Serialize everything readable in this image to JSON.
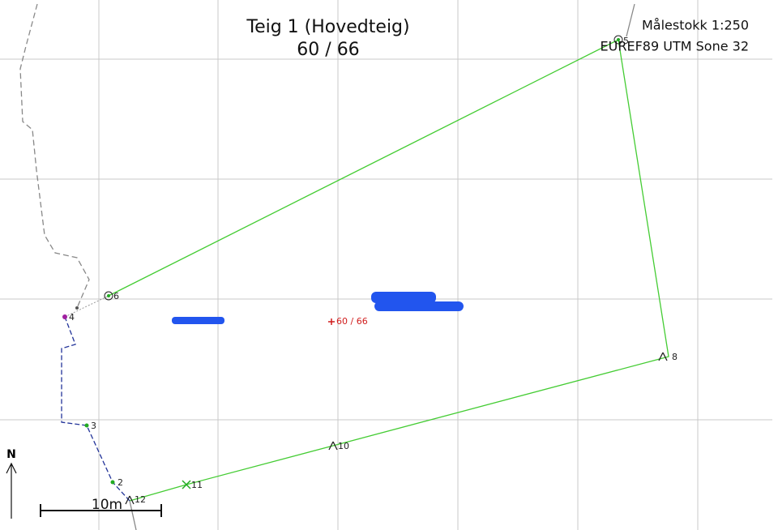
{
  "header": {
    "title": "Teig 1 (Hovedteig)",
    "subtitle": "60 / 66"
  },
  "info": {
    "scale": "Målestokk 1:250",
    "crs": "EUREF89 UTM Sone 32"
  },
  "center_label": "60 / 66",
  "points": [
    {
      "label": "6"
    },
    {
      "label": "5"
    },
    {
      "label": "8"
    },
    {
      "label": "10"
    },
    {
      "label": "11"
    },
    {
      "label": "12"
    },
    {
      "label": "2"
    },
    {
      "label": "3"
    },
    {
      "label": "4"
    }
  ],
  "north": "N",
  "scale_bar": "10m"
}
